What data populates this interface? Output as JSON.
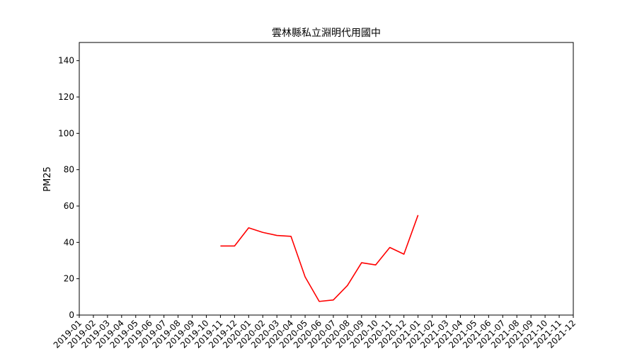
{
  "chart_data": {
    "type": "line",
    "title": "雲林縣私立淵明代用國中",
    "xlabel": "",
    "ylabel": "PM25",
    "ylim": [
      0,
      150
    ],
    "yticks": [
      0,
      20,
      40,
      60,
      80,
      100,
      120,
      140
    ],
    "grid": false,
    "categories": [
      "2019-01",
      "2019-02",
      "2019-03",
      "2019-04",
      "2019-05",
      "2019-06",
      "2019-07",
      "2019-08",
      "2019-09",
      "2019-10",
      "2019-11",
      "2019-12",
      "2020-01",
      "2020-02",
      "2020-03",
      "2020-04",
      "2020-05",
      "2020-06",
      "2020-07",
      "2020-08",
      "2020-09",
      "2020-10",
      "2020-11",
      "2020-12",
      "2021-01",
      "2021-02",
      "2021-03",
      "2021-04",
      "2021-05",
      "2021-06",
      "2021-07",
      "2021-08",
      "2021-09",
      "2021-10",
      "2021-11",
      "2021-12"
    ],
    "series": [
      {
        "color": "#ff0000",
        "x": [
          "2019-11",
          "2019-12",
          "2020-01",
          "2020-02",
          "2020-03",
          "2020-04",
          "2020-05",
          "2020-06",
          "2020-07",
          "2020-08",
          "2020-09",
          "2020-10",
          "2020-11",
          "2020-12",
          "2021-01"
        ],
        "values": [
          38,
          38,
          48,
          45.5,
          43.8,
          43.3,
          21,
          7.5,
          8.3,
          16.3,
          28.8,
          27.6,
          37.2,
          33.5,
          55
        ]
      }
    ]
  }
}
